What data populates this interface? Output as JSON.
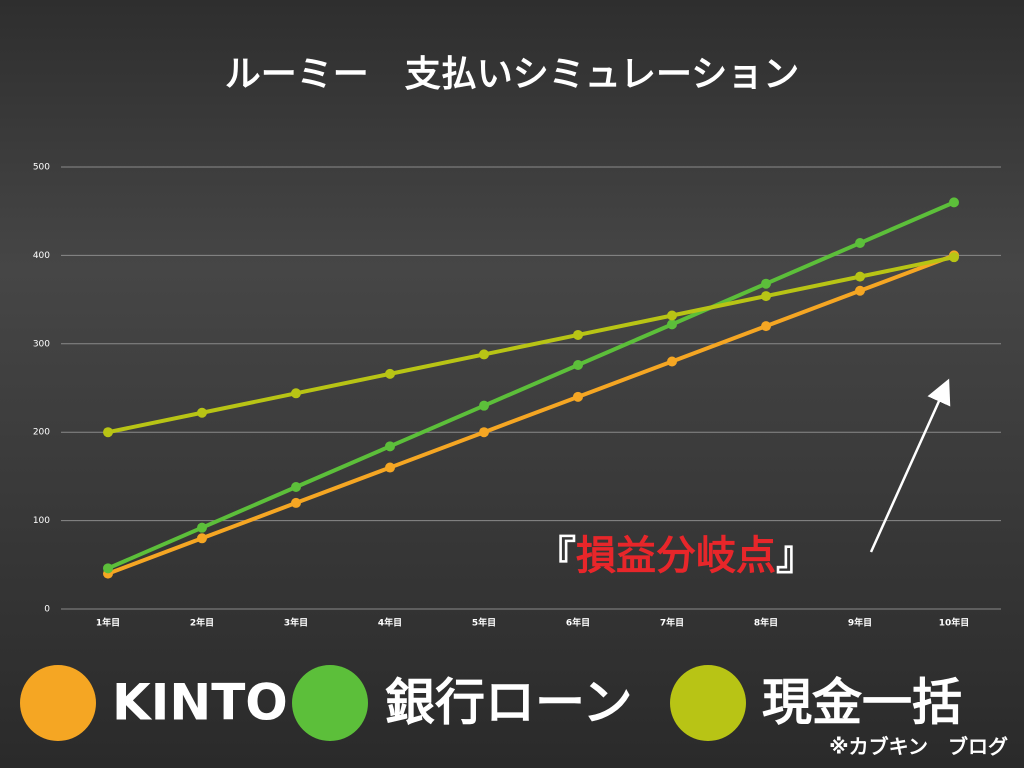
{
  "chart_data": {
    "type": "line",
    "title": "ルーミー　支払いシミュレーション",
    "categories": [
      "1年目",
      "2年目",
      "3年目",
      "4年目",
      "5年目",
      "6年目",
      "7年目",
      "8年目",
      "9年目",
      "10年目"
    ],
    "series": [
      {
        "name": "KINTO",
        "color": "#f5a623",
        "values": [
          40,
          80,
          120,
          160,
          200,
          240,
          280,
          320,
          360,
          400
        ]
      },
      {
        "name": "銀行ローン",
        "color": "#5cbf3a",
        "values": [
          46,
          92,
          138,
          184,
          230,
          276,
          322,
          368,
          414,
          460
        ]
      },
      {
        "name": "現金一括",
        "color": "#b8c415",
        "values": [
          200,
          222,
          244,
          266,
          288,
          310,
          332,
          354,
          376,
          398
        ]
      }
    ],
    "ylim": [
      0,
      500
    ],
    "yticks": [
      0,
      100,
      200,
      300,
      400,
      500
    ],
    "grid": true,
    "annotation": [
      "『",
      "損益分岐点",
      "』"
    ],
    "credit": "※カブキン　ブログ"
  }
}
